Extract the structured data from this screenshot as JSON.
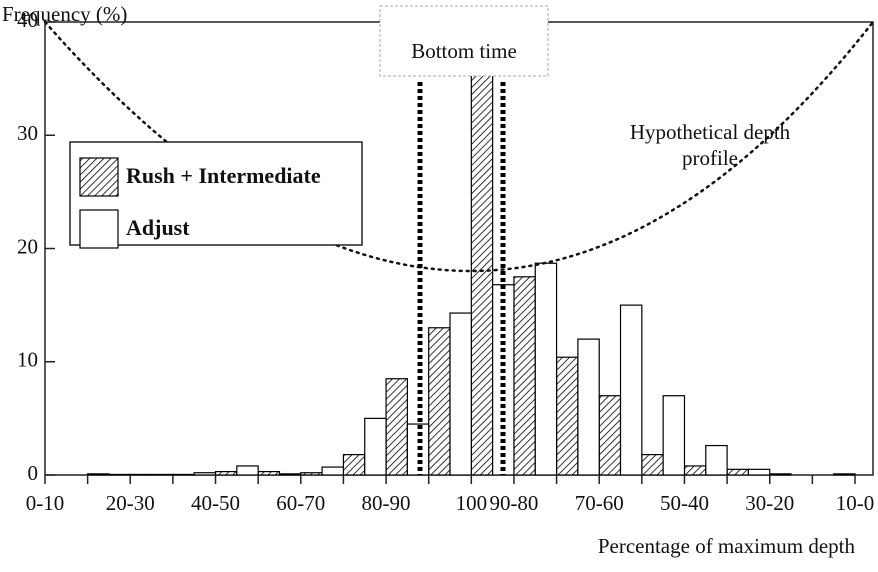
{
  "chart_data": {
    "type": "bar",
    "ylabel": "Frequency (%)",
    "xlabel": "Percentage of maximum depth",
    "categories": [
      "0-10",
      null,
      "20-30",
      null,
      "40-50",
      null,
      "60-70",
      null,
      "80-90",
      null,
      "100",
      "90-80",
      null,
      "70-60",
      null,
      "50-40",
      null,
      "30-20",
      null,
      "10-0"
    ],
    "series": [
      {
        "name": "Rush + Intermediate",
        "color": "#000000",
        "hatch": true,
        "values": [
          0,
          0.1,
          0.05,
          0.05,
          0.3,
          0.3,
          0.2,
          1.8,
          8.5,
          13,
          35.3,
          17.5,
          10.4,
          7,
          1.8,
          0.8,
          0.5,
          0.1,
          0,
          0
        ]
      },
      {
        "name": "Adjust",
        "color": "#ffffff",
        "hatch": false,
        "values": [
          0,
          0,
          0.05,
          0.05,
          0.2,
          0.8,
          0.1,
          0.7,
          5,
          4.5,
          14.3,
          16.8,
          18.7,
          12,
          15,
          7,
          2.6,
          0.5,
          0,
          0.1
        ]
      }
    ],
    "ylim": [
      0,
      40
    ],
    "yticks": [
      0,
      10,
      20,
      30,
      40
    ],
    "annotations": [
      "Bottom time",
      "Hypothetical depth",
      "profile"
    ]
  }
}
